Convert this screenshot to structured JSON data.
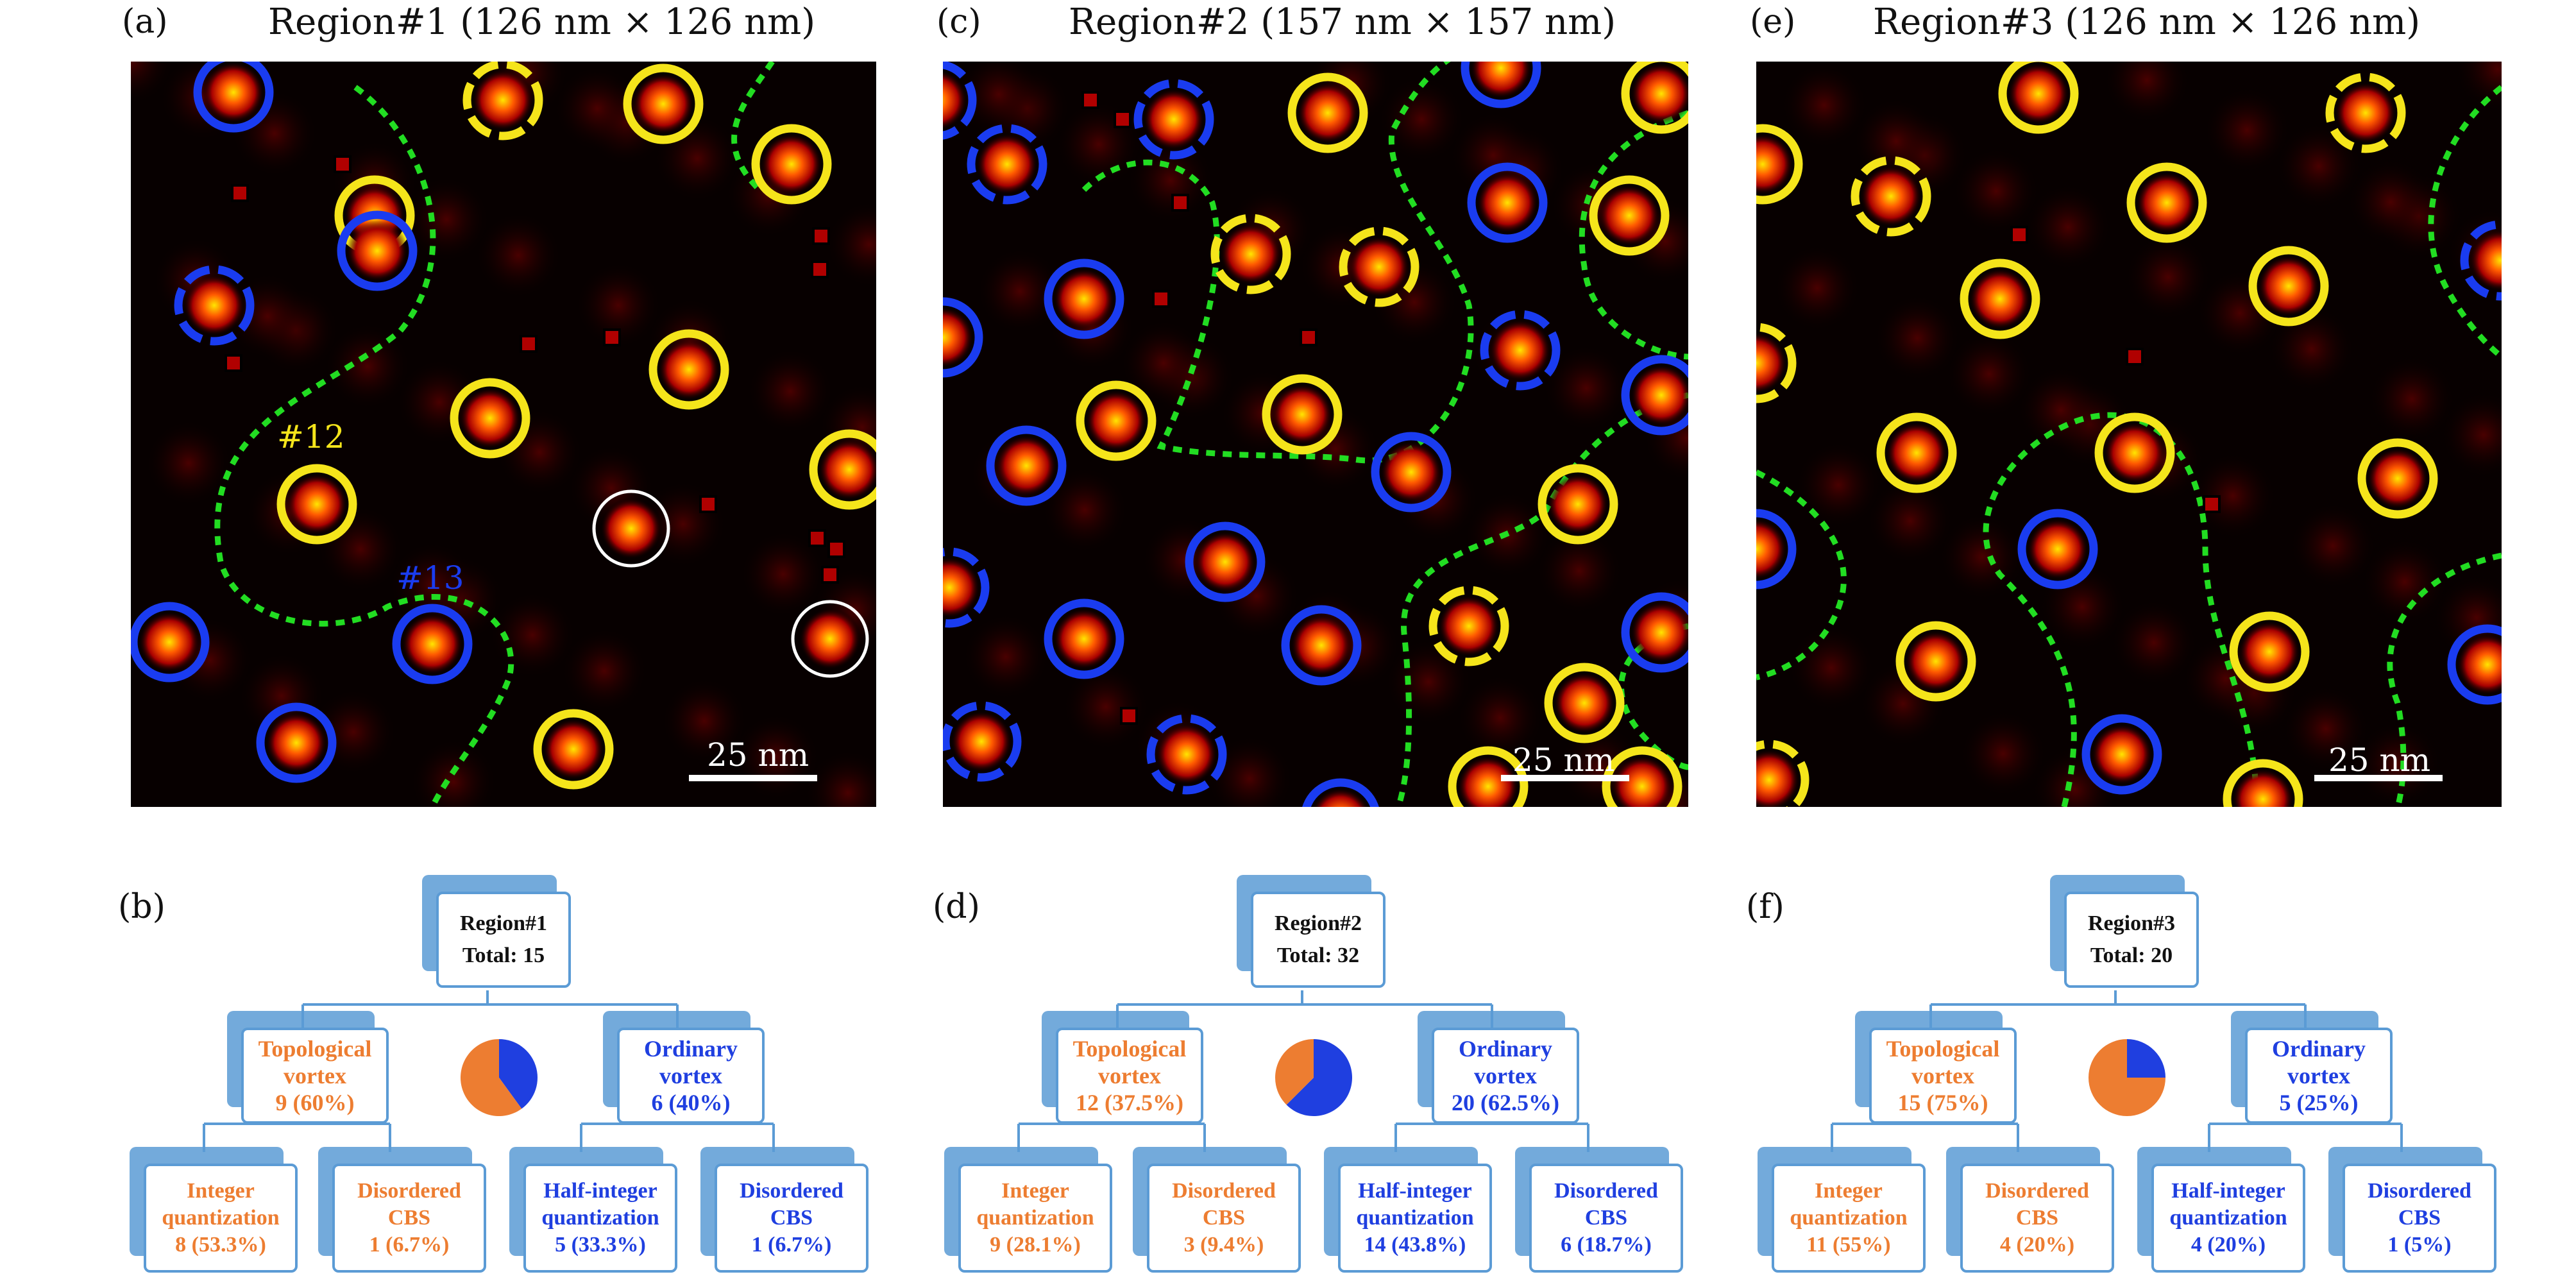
{
  "colors": {
    "topological": "#ed7d31",
    "ordinary": "#1f3fe0",
    "box_border": "#5b9bd5",
    "marker_yellow": "#f5e51b",
    "marker_blue": "#1a3cf0",
    "domain_wall": "#22dd22"
  },
  "panels": [
    {
      "map_letter": "(a)",
      "map_title": "Region#1 (126 nm × 126 nm)",
      "scalebar": "25 nm",
      "annotations": [
        "#12",
        "#13"
      ],
      "tree_letter": "(b)",
      "root_title": "Region#1",
      "root_total": "Total: 15",
      "topo_title": "Topological vortex",
      "topo_count": "9 (60%)",
      "ord_title": "Ordinary vortex",
      "ord_count": "6 (40%)",
      "leaves": [
        {
          "title": "Integer quantization",
          "count": "8 (53.3%)"
        },
        {
          "title": "Disordered CBS",
          "count": "1 (6.7%)"
        },
        {
          "title": "Half-integer quantization",
          "count": "5 (33.3%)"
        },
        {
          "title": "Disordered CBS",
          "count": "1 (6.7%)"
        }
      ],
      "pie": {
        "topological_fraction": 0.6,
        "ordinary_fraction": 0.4
      }
    },
    {
      "map_letter": "(c)",
      "map_title": "Region#2 (157 nm × 157 nm)",
      "scalebar": "25 nm",
      "annotations": [],
      "tree_letter": "(d)",
      "root_title": "Region#2",
      "root_total": "Total: 32",
      "topo_title": "Topological vortex",
      "topo_count": "12 (37.5%)",
      "ord_title": "Ordinary vortex",
      "ord_count": "20 (62.5%)",
      "leaves": [
        {
          "title": "Integer quantization",
          "count": "9 (28.1%)"
        },
        {
          "title": "Disordered CBS",
          "count": "3 (9.4%)"
        },
        {
          "title": "Half-integer quantization",
          "count": "14 (43.8%)"
        },
        {
          "title": "Disordered CBS",
          "count": "6 (18.7%)"
        }
      ],
      "pie": {
        "topological_fraction": 0.375,
        "ordinary_fraction": 0.625
      }
    },
    {
      "map_letter": "(e)",
      "map_title": "Region#3 (126 nm × 126 nm)",
      "scalebar": "25 nm",
      "annotations": [],
      "tree_letter": "(f)",
      "root_title": "Region#3",
      "root_total": "Total: 20",
      "topo_title": "Topological vortex",
      "topo_count": "15 (75%)",
      "ord_title": "Ordinary vortex",
      "ord_count": "5 (25%)",
      "leaves": [
        {
          "title": "Integer quantization",
          "count": "11 (55%)"
        },
        {
          "title": "Disordered CBS",
          "count": "4 (20%)"
        },
        {
          "title": "Half-integer quantization",
          "count": "4 (20%)"
        },
        {
          "title": "Disordered CBS",
          "count": "1 (5%)"
        }
      ],
      "pie": {
        "topological_fraction": 0.75,
        "ordinary_fraction": 0.25
      }
    }
  ]
}
